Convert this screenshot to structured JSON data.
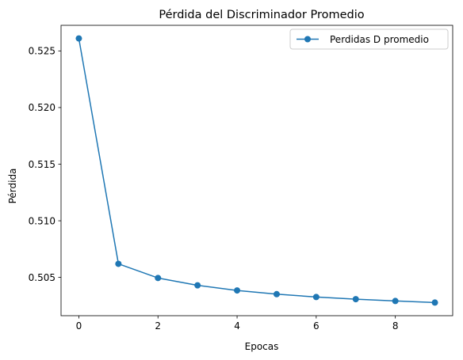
{
  "chart_data": {
    "type": "line",
    "title": "Pérdida del Discriminador Promedio",
    "xlabel": "Epocas",
    "ylabel": "Pérdida",
    "x": [
      0,
      1,
      2,
      3,
      4,
      5,
      6,
      7,
      8,
      9
    ],
    "series": [
      {
        "name": "Perdidas D promedio",
        "values": [
          0.5261,
          0.5062,
          0.50495,
          0.5043,
          0.50385,
          0.50352,
          0.50327,
          0.50308,
          0.50292,
          0.50278
        ],
        "color": "#1f77b4",
        "marker": "circle"
      }
    ],
    "xticks": [
      0,
      2,
      4,
      6,
      8
    ],
    "xtick_labels": [
      "0",
      "2",
      "4",
      "6",
      "8"
    ],
    "yticks": [
      0.505,
      0.51,
      0.515,
      0.52,
      0.525
    ],
    "ytick_labels": [
      "0.505",
      "0.510",
      "0.515",
      "0.520",
      "0.525"
    ],
    "xlim": [
      -0.45,
      9.45
    ],
    "ylim": [
      0.50162,
      0.52726
    ],
    "grid": false,
    "legend": "top-right"
  }
}
